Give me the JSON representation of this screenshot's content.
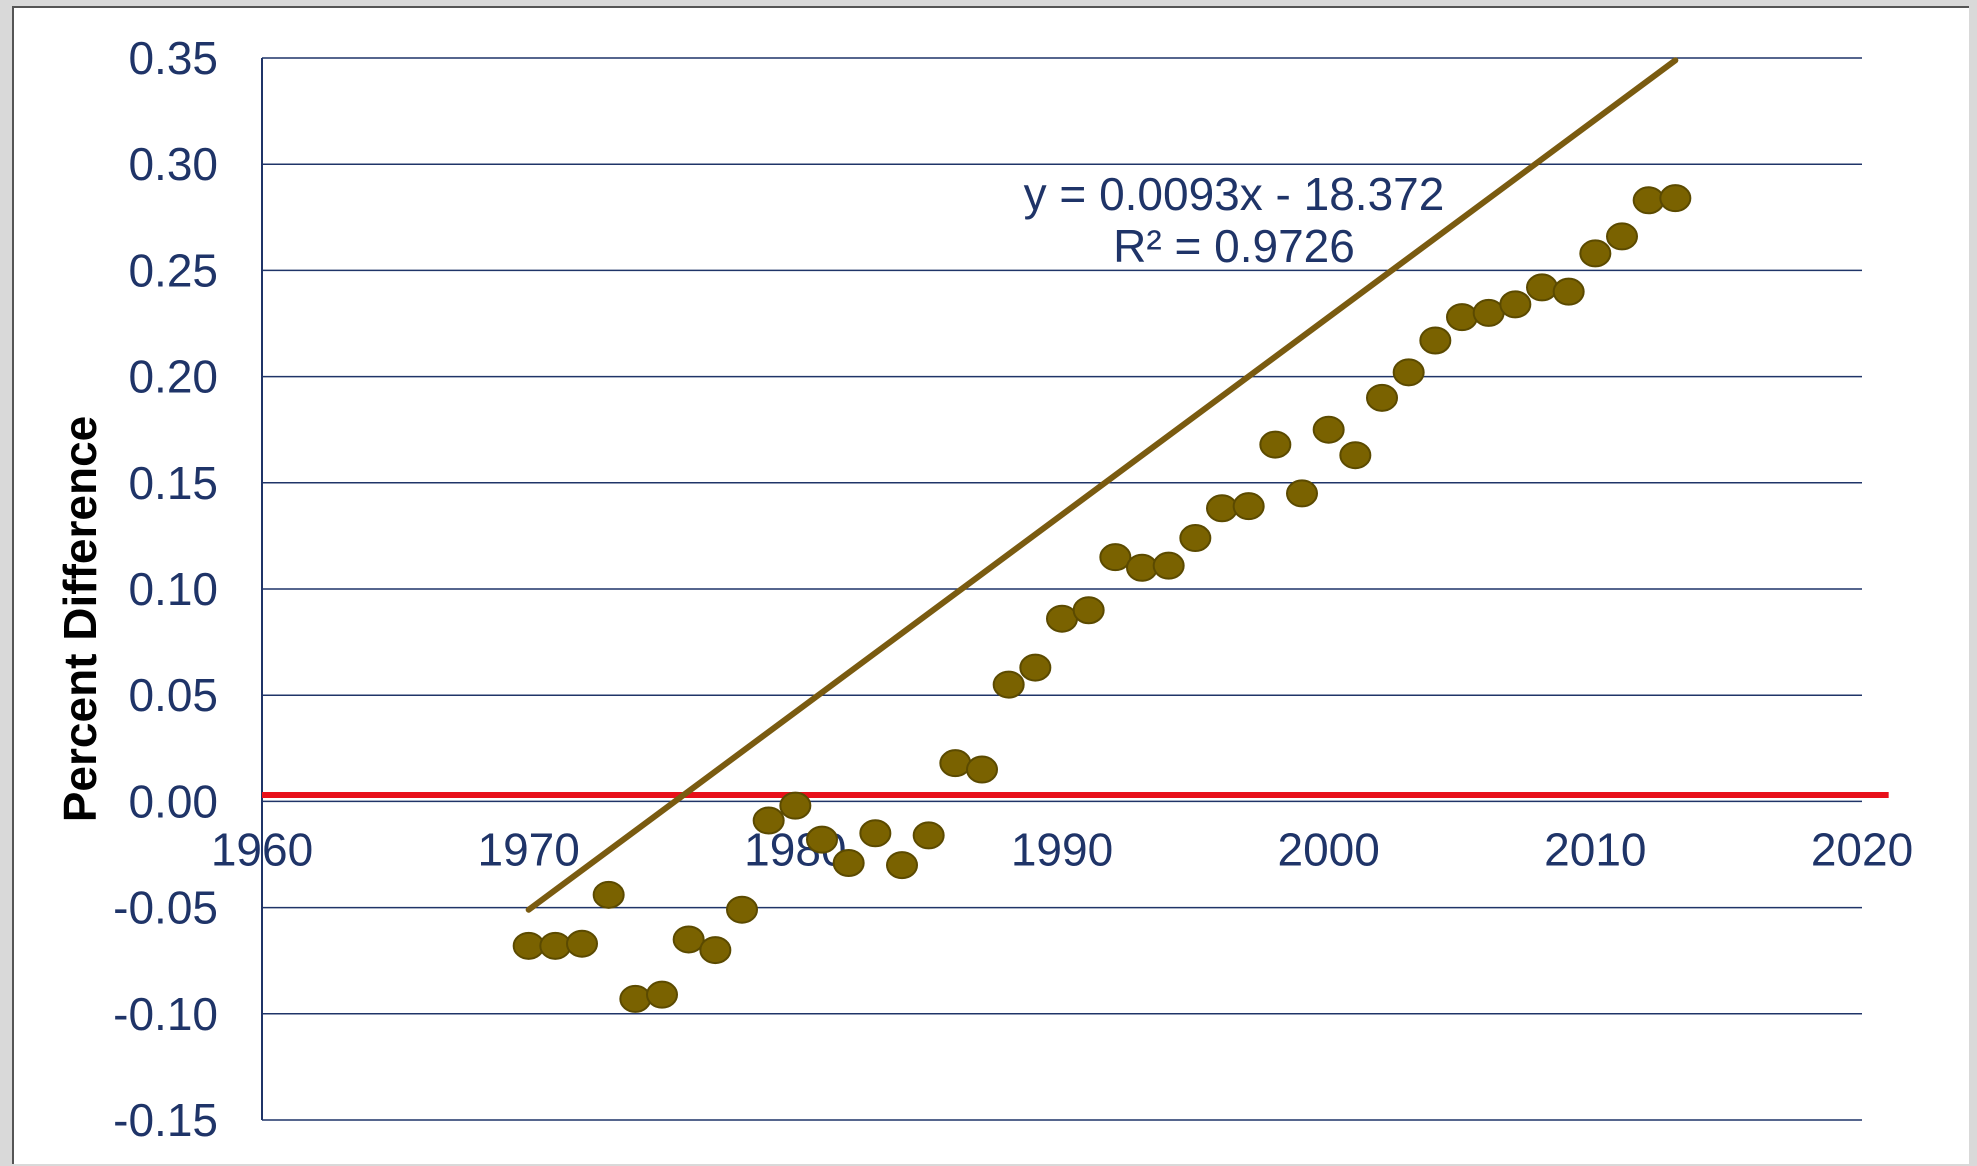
{
  "chart_data": {
    "type": "scatter",
    "ylabel": "Percent Difference",
    "xlabel": "",
    "xlim": [
      1960,
      2020
    ],
    "ylim": [
      -0.15,
      0.35
    ],
    "xticks": [
      "1960",
      "1970",
      "1980",
      "1990",
      "2000",
      "2010",
      "2020"
    ],
    "yticks": [
      "0.35",
      "0.30",
      "0.25",
      "0.20",
      "0.15",
      "0.10",
      "0.05",
      "0.00",
      "-0.05",
      "-0.10",
      "-0.15"
    ],
    "grid": "horizontal",
    "colors": {
      "points": "#7a6200",
      "points_stroke": "#5b4a00",
      "trendline": "#7a5b10",
      "reference_line": "#e8101a",
      "text": "#1f3468",
      "grid": "#1f3468"
    },
    "series": [
      {
        "x": [
          1970,
          1971,
          1972,
          1973,
          1974,
          1975,
          1976,
          1977,
          1978,
          1979,
          1980,
          1981,
          1982,
          1983,
          1984,
          1985,
          1986,
          1987,
          1988,
          1989,
          1990,
          1991,
          1992,
          1993,
          1994,
          1995,
          1996,
          1997,
          1998,
          1999,
          2000,
          2001,
          2002,
          2003,
          2004,
          2005,
          2006,
          2007,
          2008,
          2009,
          2010,
          2011,
          2012,
          2013
        ],
        "y": [
          -0.068,
          -0.068,
          -0.067,
          -0.044,
          -0.093,
          -0.091,
          -0.065,
          -0.07,
          -0.051,
          -0.009,
          -0.002,
          -0.018,
          -0.029,
          -0.015,
          -0.03,
          -0.016,
          0.018,
          0.015,
          0.055,
          0.063,
          0.086,
          0.09,
          0.115,
          0.11,
          0.111,
          0.124,
          0.138,
          0.139,
          0.168,
          0.145,
          0.175,
          0.163,
          0.19,
          0.202,
          0.217,
          0.228,
          0.23,
          0.234,
          0.242,
          0.24,
          0.258,
          0.266,
          0.283,
          0.284
        ]
      }
    ],
    "trendline": {
      "slope": 0.0093,
      "intercept": -18.372,
      "x_range": [
        1970,
        2013
      ],
      "equation": "y = 0.0093x - 18.372",
      "r_squared": "R² = 0.9726"
    },
    "reference_line": {
      "y": 0.003,
      "x_range": [
        1960,
        2021
      ]
    }
  }
}
